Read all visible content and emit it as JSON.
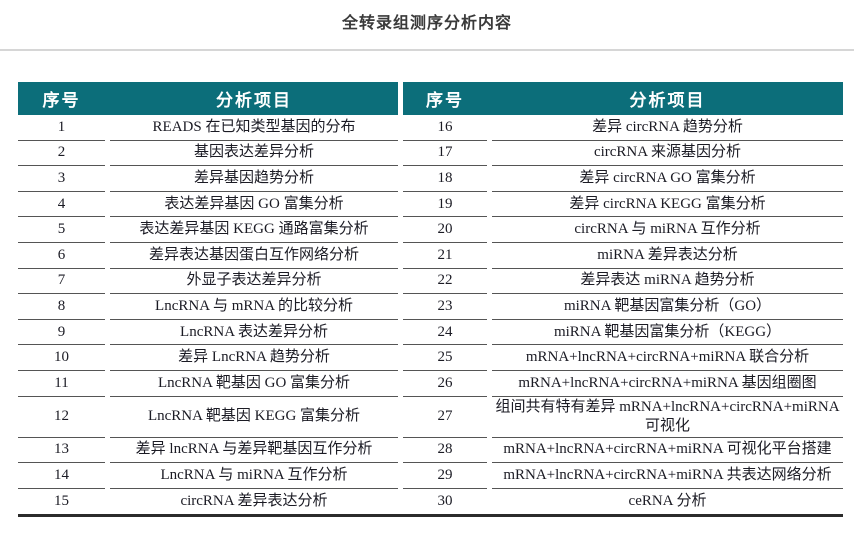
{
  "page": {
    "title": "全转录组测序分析内容"
  },
  "table": {
    "header": {
      "index_label": "序号",
      "item_label": "分析项目"
    },
    "left_rows": [
      {
        "no": "1",
        "item": "READS 在已知类型基因的分布"
      },
      {
        "no": "2",
        "item": "基因表达差异分析"
      },
      {
        "no": "3",
        "item": "差异基因趋势分析"
      },
      {
        "no": "4",
        "item": "表达差异基因 GO 富集分析"
      },
      {
        "no": "5",
        "item": "表达差异基因 KEGG 通路富集分析"
      },
      {
        "no": "6",
        "item": "差异表达基因蛋白互作网络分析"
      },
      {
        "no": "7",
        "item": "外显子表达差异分析"
      },
      {
        "no": "8",
        "item": "LncRNA 与 mRNA 的比较分析"
      },
      {
        "no": "9",
        "item": "LncRNA 表达差异分析"
      },
      {
        "no": "10",
        "item": "差异 LncRNA 趋势分析"
      },
      {
        "no": "11",
        "item": "LncRNA 靶基因 GO 富集分析"
      },
      {
        "no": "12",
        "item": "LncRNA 靶基因 KEGG 富集分析"
      },
      {
        "no": "13",
        "item": "差异 lncRNA 与差异靶基因互作分析"
      },
      {
        "no": "14",
        "item": "LncRNA 与 miRNA 互作分析"
      },
      {
        "no": "15",
        "item": "circRNA 差异表达分析"
      }
    ],
    "right_rows": [
      {
        "no": "16",
        "item": "差异 circRNA 趋势分析"
      },
      {
        "no": "17",
        "item": "circRNA 来源基因分析"
      },
      {
        "no": "18",
        "item": "差异 circRNA GO 富集分析"
      },
      {
        "no": "19",
        "item": "差异 circRNA KEGG 富集分析"
      },
      {
        "no": "20",
        "item": "circRNA 与 miRNA 互作分析"
      },
      {
        "no": "21",
        "item": "miRNA 差异表达分析"
      },
      {
        "no": "22",
        "item": "差异表达 miRNA 趋势分析"
      },
      {
        "no": "23",
        "item": "miRNA 靶基因富集分析（GO）"
      },
      {
        "no": "24",
        "item": "miRNA 靶基因富集分析（KEGG）"
      },
      {
        "no": "25",
        "item": "mRNA+lncRNA+circRNA+miRNA 联合分析"
      },
      {
        "no": "26",
        "item": "mRNA+lncRNA+circRNA+miRNA 基因组圈图"
      },
      {
        "no": "27",
        "item": "组间共有特有差异 mRNA+lncRNA+circRNA+miRNA 可视化"
      },
      {
        "no": "28",
        "item": "mRNA+lncRNA+circRNA+miRNA 可视化平台搭建"
      },
      {
        "no": "29",
        "item": "mRNA+lncRNA+circRNA+miRNA 共表达网络分析"
      },
      {
        "no": "30",
        "item": "ceRNA 分析"
      }
    ],
    "colors": {
      "header_bg": "#0c6e7a",
      "header_text": "#ffffff",
      "row_divider": "#555555",
      "bottom_border": "#2b2b2b"
    }
  }
}
